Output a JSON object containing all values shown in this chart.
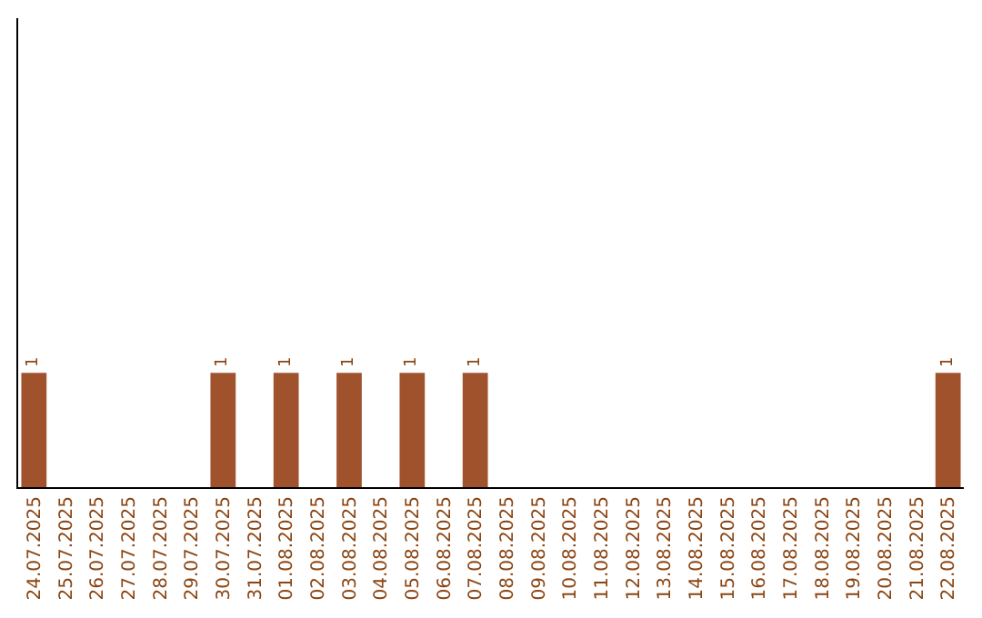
{
  "chart_data": {
    "type": "bar",
    "categories": [
      "24.07.2025",
      "25.07.2025",
      "26.07.2025",
      "27.07.2025",
      "28.07.2025",
      "29.07.2025",
      "30.07.2025",
      "31.07.2025",
      "01.08.2025",
      "02.08.2025",
      "03.08.2025",
      "04.08.2025",
      "05.08.2025",
      "06.08.2025",
      "07.08.2025",
      "08.08.2025",
      "09.08.2025",
      "10.08.2025",
      "11.08.2025",
      "12.08.2025",
      "13.08.2025",
      "14.08.2025",
      "15.08.2025",
      "16.08.2025",
      "17.08.2025",
      "18.08.2025",
      "19.08.2025",
      "20.08.2025",
      "21.08.2025",
      "22.08.2025"
    ],
    "values": [
      1,
      0,
      0,
      0,
      0,
      0,
      1,
      0,
      1,
      0,
      1,
      0,
      1,
      0,
      1,
      0,
      0,
      0,
      0,
      0,
      0,
      0,
      0,
      0,
      0,
      0,
      0,
      0,
      0,
      1
    ],
    "value_labels": [
      "1",
      null,
      null,
      null,
      null,
      null,
      "1",
      null,
      "1",
      null,
      "1",
      null,
      "1",
      null,
      "1",
      null,
      null,
      null,
      null,
      null,
      null,
      null,
      null,
      null,
      null,
      null,
      null,
      null,
      null,
      "1"
    ],
    "color": "#a0522d",
    "ylim": [
      0,
      4.1
    ]
  }
}
